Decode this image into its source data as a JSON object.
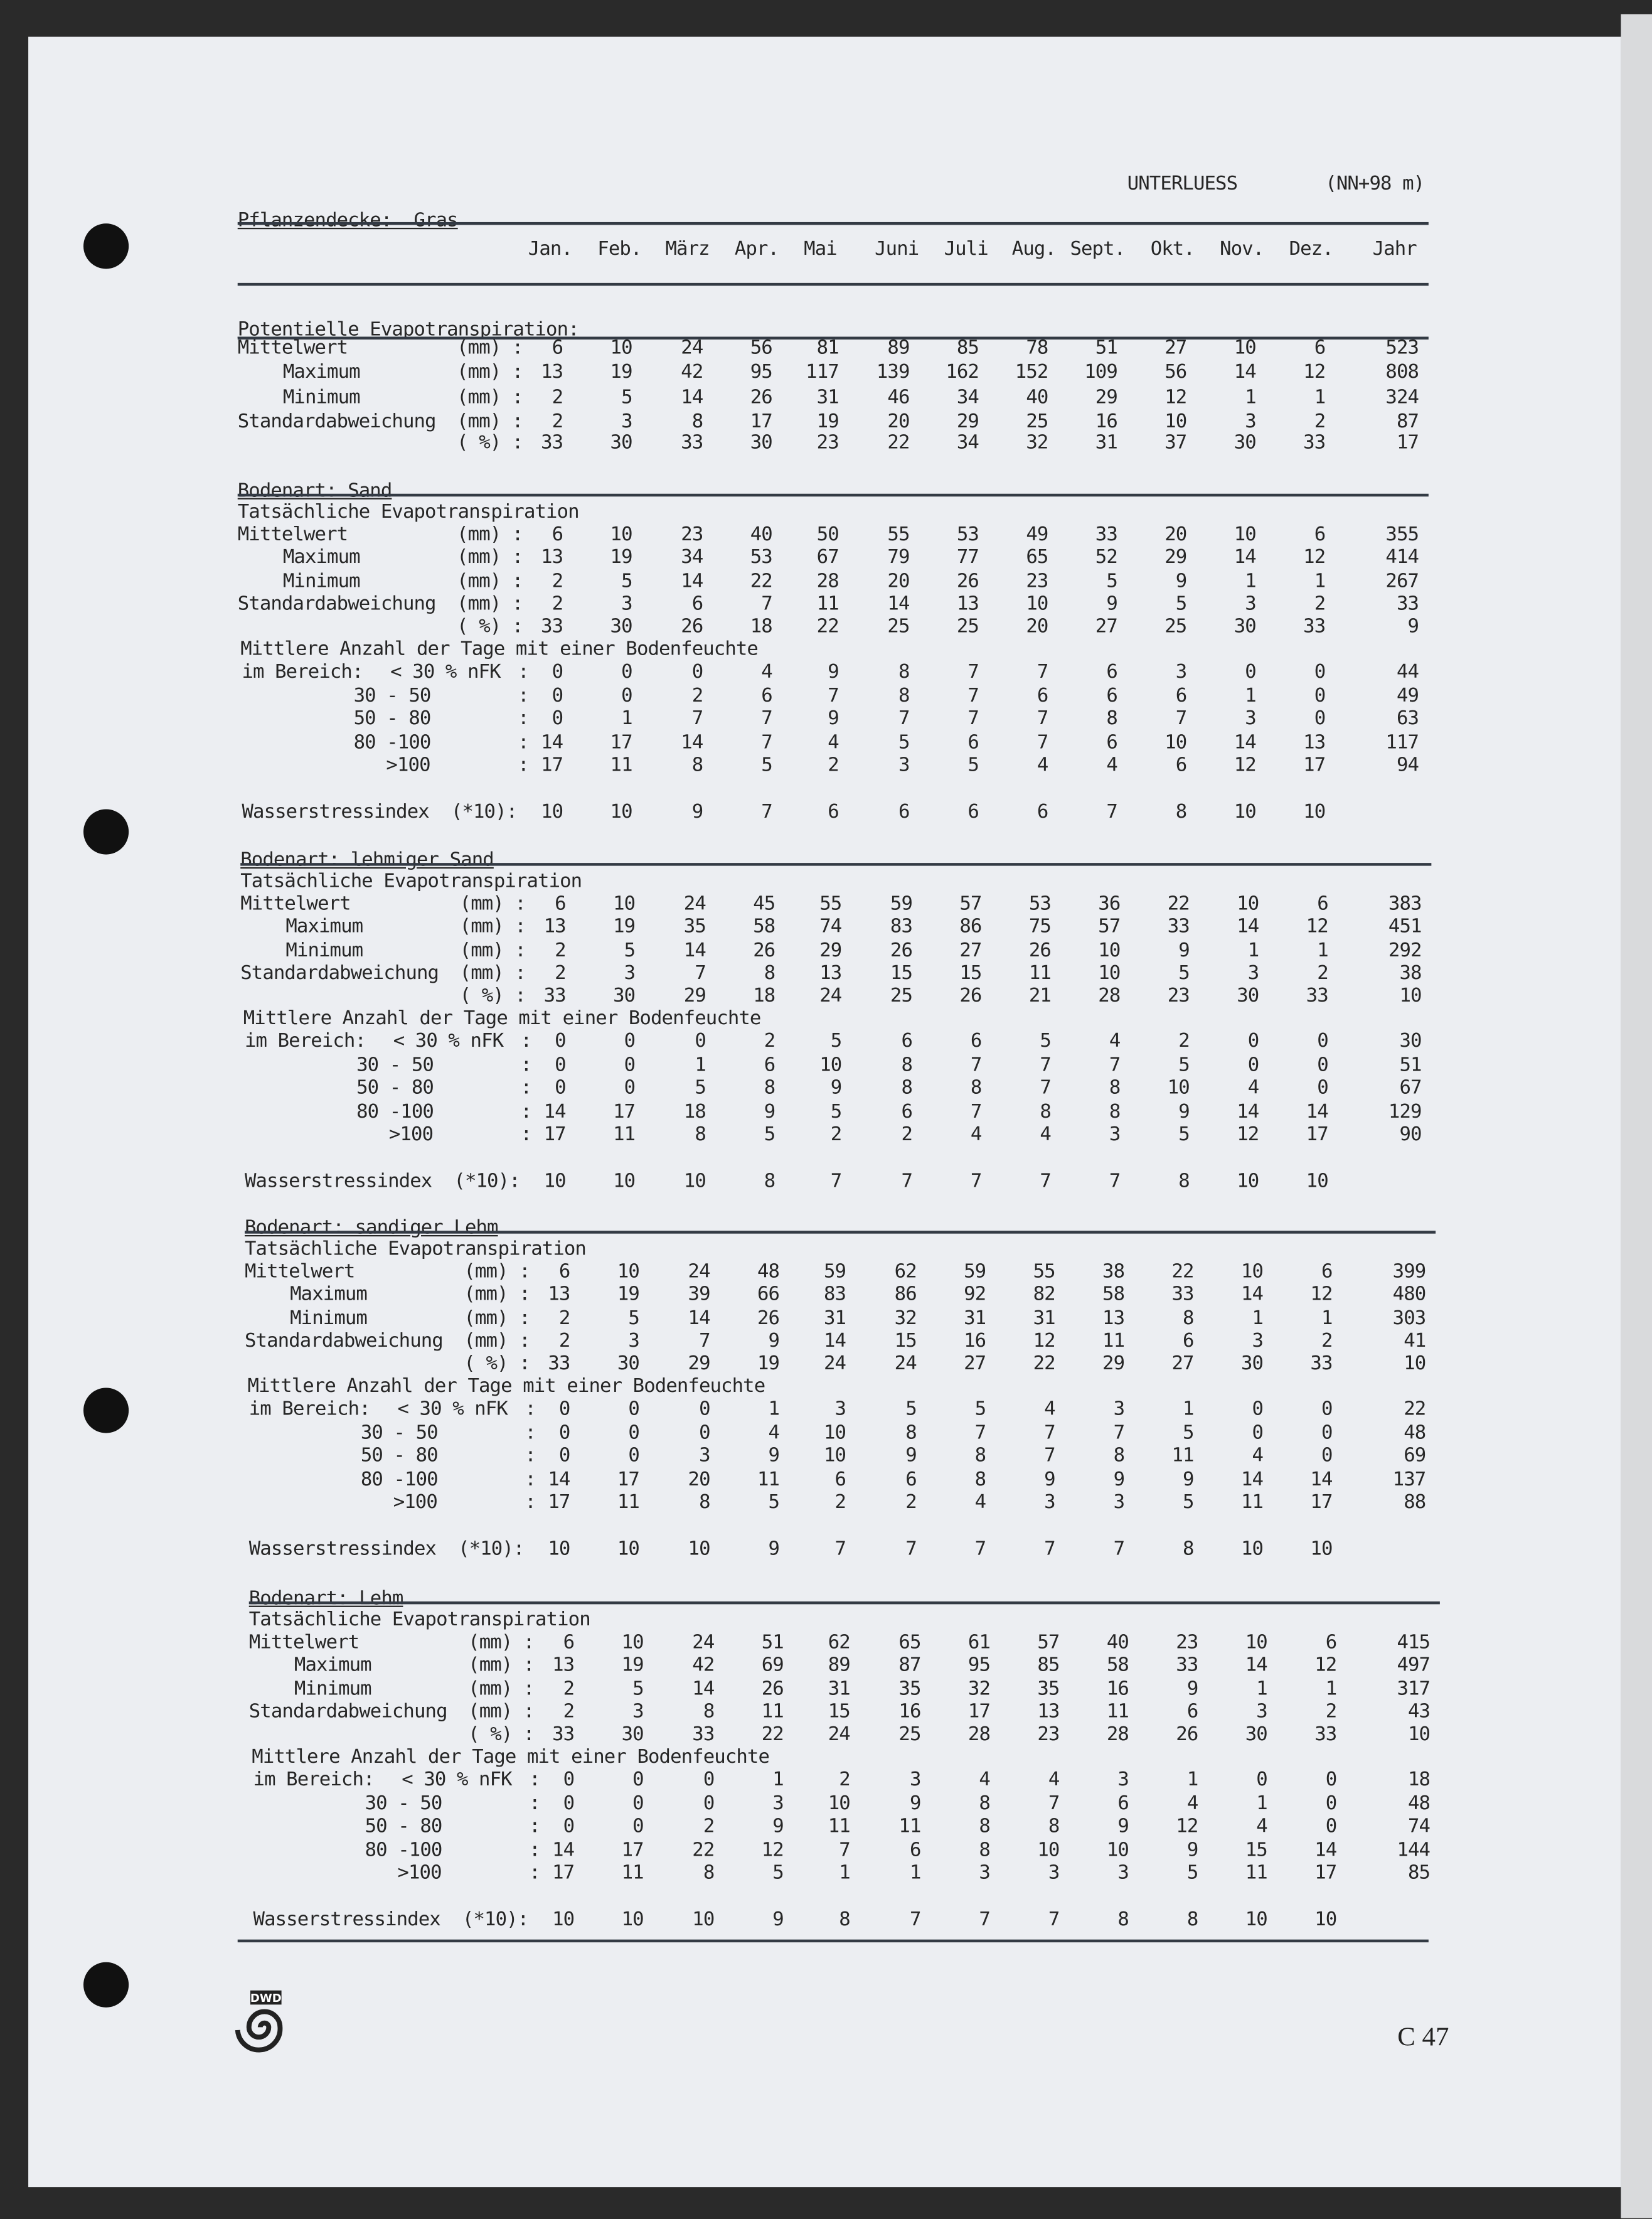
{
  "header": {
    "station": "UNTERLUESS",
    "elevation": "(NN+98 m)",
    "cover": "Pflanzendecke:  Gras"
  },
  "months": [
    "Jan.",
    "Feb.",
    "März",
    "Apr.",
    "Mai",
    "Juni",
    "Juli",
    "Aug.",
    "Sept.",
    "Okt.",
    "Nov.",
    "Dez.",
    "Jahr"
  ],
  "potential": {
    "title": "Potentielle Evapotranspiration:",
    "rows": [
      {
        "label": "Mittelwert",
        "unit": "(mm) :",
        "values": [
          "6",
          "10",
          "24",
          "56",
          "81",
          "89",
          "85",
          "78",
          "51",
          "27",
          "10",
          "6",
          "523"
        ]
      },
      {
        "label": "Maximum",
        "unit": "(mm) :",
        "values": [
          "13",
          "19",
          "42",
          "95",
          "117",
          "139",
          "162",
          "152",
          "109",
          "56",
          "14",
          "12",
          "808"
        ]
      },
      {
        "label": "Minimum",
        "unit": "(mm) :",
        "values": [
          "2",
          "5",
          "14",
          "26",
          "31",
          "46",
          "34",
          "40",
          "29",
          "12",
          "1",
          "1",
          "324"
        ]
      },
      {
        "label": "Standardabweichung",
        "unit": "(mm) :",
        "values": [
          "2",
          "3",
          "8",
          "17",
          "19",
          "20",
          "29",
          "25",
          "16",
          "10",
          "3",
          "2",
          "87"
        ]
      },
      {
        "label": "",
        "unit": "( %) :",
        "values": [
          "33",
          "30",
          "33",
          "30",
          "23",
          "22",
          "34",
          "32",
          "31",
          "37",
          "30",
          "33",
          "17"
        ]
      }
    ]
  },
  "soils": [
    {
      "title": "Bodenart: Sand",
      "subtitle": "Tatsächliche Evapotranspiration",
      "days_title": "Mittlere Anzahl der Tage mit einer Bodenfeuchte",
      "rows": [
        {
          "label": "Mittelwert",
          "unit": "(mm) :",
          "values": [
            "6",
            "10",
            "23",
            "40",
            "50",
            "55",
            "53",
            "49",
            "33",
            "20",
            "10",
            "6",
            "355"
          ]
        },
        {
          "label": "Maximum",
          "unit": "(mm) :",
          "values": [
            "13",
            "19",
            "34",
            "53",
            "67",
            "79",
            "77",
            "65",
            "52",
            "29",
            "14",
            "12",
            "414"
          ]
        },
        {
          "label": "Minimum",
          "unit": "(mm) :",
          "values": [
            "2",
            "5",
            "14",
            "22",
            "28",
            "20",
            "26",
            "23",
            "5",
            "9",
            "1",
            "1",
            "267"
          ]
        },
        {
          "label": "Standardabweichung",
          "unit": "(mm) :",
          "values": [
            "2",
            "3",
            "6",
            "7",
            "11",
            "14",
            "13",
            "10",
            "9",
            "5",
            "3",
            "2",
            "33"
          ]
        },
        {
          "label": "",
          "unit": "( %) :",
          "values": [
            "33",
            "30",
            "26",
            "18",
            "22",
            "25",
            "25",
            "20",
            "27",
            "25",
            "30",
            "33",
            "9"
          ]
        }
      ],
      "days": [
        {
          "label": "im Bereich:",
          "range": "< 30 % nFK",
          "values": [
            "0",
            "0",
            "0",
            "4",
            "9",
            "8",
            "7",
            "7",
            "6",
            "3",
            "0",
            "0",
            "44"
          ]
        },
        {
          "label": "",
          "range": "30 - 50",
          "values": [
            "0",
            "0",
            "2",
            "6",
            "7",
            "8",
            "7",
            "6",
            "6",
            "6",
            "1",
            "0",
            "49"
          ]
        },
        {
          "label": "",
          "range": "50 - 80",
          "values": [
            "0",
            "1",
            "7",
            "7",
            "9",
            "7",
            "7",
            "7",
            "8",
            "7",
            "3",
            "0",
            "63"
          ]
        },
        {
          "label": "",
          "range": "80 -100",
          "values": [
            "14",
            "17",
            "14",
            "7",
            "4",
            "5",
            "6",
            "7",
            "6",
            "10",
            "14",
            "13",
            "117"
          ]
        },
        {
          "label": "",
          "range": ">100",
          "values": [
            "17",
            "11",
            "8",
            "5",
            "2",
            "3",
            "5",
            "4",
            "4",
            "6",
            "12",
            "17",
            "94"
          ]
        }
      ],
      "stress": {
        "label": "Wasserstressindex  (*10):",
        "values": [
          "10",
          "10",
          "9",
          "7",
          "6",
          "6",
          "6",
          "6",
          "7",
          "8",
          "10",
          "10"
        ]
      }
    },
    {
      "title": "Bodenart: lehmiger Sand",
      "subtitle": "Tatsächliche Evapotranspiration",
      "days_title": "Mittlere Anzahl der Tage mit einer Bodenfeuchte",
      "rows": [
        {
          "label": "Mittelwert",
          "unit": "(mm) :",
          "values": [
            "6",
            "10",
            "24",
            "45",
            "55",
            "59",
            "57",
            "53",
            "36",
            "22",
            "10",
            "6",
            "383"
          ]
        },
        {
          "label": "Maximum",
          "unit": "(mm) :",
          "values": [
            "13",
            "19",
            "35",
            "58",
            "74",
            "83",
            "86",
            "75",
            "57",
            "33",
            "14",
            "12",
            "451"
          ]
        },
        {
          "label": "Minimum",
          "unit": "(mm) :",
          "values": [
            "2",
            "5",
            "14",
            "26",
            "29",
            "26",
            "27",
            "26",
            "10",
            "9",
            "1",
            "1",
            "292"
          ]
        },
        {
          "label": "Standardabweichung",
          "unit": "(mm) :",
          "values": [
            "2",
            "3",
            "7",
            "8",
            "13",
            "15",
            "15",
            "11",
            "10",
            "5",
            "3",
            "2",
            "38"
          ]
        },
        {
          "label": "",
          "unit": "( %) :",
          "values": [
            "33",
            "30",
            "29",
            "18",
            "24",
            "25",
            "26",
            "21",
            "28",
            "23",
            "30",
            "33",
            "10"
          ]
        }
      ],
      "days": [
        {
          "label": "im Bereich:",
          "range": "< 30 % nFK",
          "values": [
            "0",
            "0",
            "0",
            "2",
            "5",
            "6",
            "6",
            "5",
            "4",
            "2",
            "0",
            "0",
            "30"
          ]
        },
        {
          "label": "",
          "range": "30 - 50",
          "values": [
            "0",
            "0",
            "1",
            "6",
            "10",
            "8",
            "7",
            "7",
            "7",
            "5",
            "0",
            "0",
            "51"
          ]
        },
        {
          "label": "",
          "range": "50 - 80",
          "values": [
            "0",
            "0",
            "5",
            "8",
            "9",
            "8",
            "8",
            "7",
            "8",
            "10",
            "4",
            "0",
            "67"
          ]
        },
        {
          "label": "",
          "range": "80 -100",
          "values": [
            "14",
            "17",
            "18",
            "9",
            "5",
            "6",
            "7",
            "8",
            "8",
            "9",
            "14",
            "14",
            "129"
          ]
        },
        {
          "label": "",
          "range": ">100",
          "values": [
            "17",
            "11",
            "8",
            "5",
            "2",
            "2",
            "4",
            "4",
            "3",
            "5",
            "12",
            "17",
            "90"
          ]
        }
      ],
      "stress": {
        "label": "Wasserstressindex  (*10):",
        "values": [
          "10",
          "10",
          "10",
          "8",
          "7",
          "7",
          "7",
          "7",
          "7",
          "8",
          "10",
          "10"
        ]
      }
    },
    {
      "title": "Bodenart: sandiger Lehm",
      "subtitle": "Tatsächliche Evapotranspiration",
      "days_title": "Mittlere Anzahl der Tage mit einer Bodenfeuchte",
      "rows": [
        {
          "label": "Mittelwert",
          "unit": "(mm) :",
          "values": [
            "6",
            "10",
            "24",
            "48",
            "59",
            "62",
            "59",
            "55",
            "38",
            "22",
            "10",
            "6",
            "399"
          ]
        },
        {
          "label": "Maximum",
          "unit": "(mm) :",
          "values": [
            "13",
            "19",
            "39",
            "66",
            "83",
            "86",
            "92",
            "82",
            "58",
            "33",
            "14",
            "12",
            "480"
          ]
        },
        {
          "label": "Minimum",
          "unit": "(mm) :",
          "values": [
            "2",
            "5",
            "14",
            "26",
            "31",
            "32",
            "31",
            "31",
            "13",
            "8",
            "1",
            "1",
            "303"
          ]
        },
        {
          "label": "Standardabweichung",
          "unit": "(mm) :",
          "values": [
            "2",
            "3",
            "7",
            "9",
            "14",
            "15",
            "16",
            "12",
            "11",
            "6",
            "3",
            "2",
            "41"
          ]
        },
        {
          "label": "",
          "unit": "( %) :",
          "values": [
            "33",
            "30",
            "29",
            "19",
            "24",
            "24",
            "27",
            "22",
            "29",
            "27",
            "30",
            "33",
            "10"
          ]
        }
      ],
      "days": [
        {
          "label": "im Bereich:",
          "range": "< 30 % nFK",
          "values": [
            "0",
            "0",
            "0",
            "1",
            "3",
            "5",
            "5",
            "4",
            "3",
            "1",
            "0",
            "0",
            "22"
          ]
        },
        {
          "label": "",
          "range": "30 - 50",
          "values": [
            "0",
            "0",
            "0",
            "4",
            "10",
            "8",
            "7",
            "7",
            "7",
            "5",
            "0",
            "0",
            "48"
          ]
        },
        {
          "label": "",
          "range": "50 - 80",
          "values": [
            "0",
            "0",
            "3",
            "9",
            "10",
            "9",
            "8",
            "7",
            "8",
            "11",
            "4",
            "0",
            "69"
          ]
        },
        {
          "label": "",
          "range": "80 -100",
          "values": [
            "14",
            "17",
            "20",
            "11",
            "6",
            "6",
            "8",
            "9",
            "9",
            "9",
            "14",
            "14",
            "137"
          ]
        },
        {
          "label": "",
          "range": ">100",
          "values": [
            "17",
            "11",
            "8",
            "5",
            "2",
            "2",
            "4",
            "3",
            "3",
            "5",
            "11",
            "17",
            "88"
          ]
        }
      ],
      "stress": {
        "label": "Wasserstressindex  (*10):",
        "values": [
          "10",
          "10",
          "10",
          "9",
          "7",
          "7",
          "7",
          "7",
          "7",
          "8",
          "10",
          "10"
        ]
      }
    },
    {
      "title": "Bodenart: Lehm",
      "subtitle": "Tatsächliche Evapotranspiration",
      "days_title": "Mittlere Anzahl der Tage mit einer Bodenfeuchte",
      "rows": [
        {
          "label": "Mittelwert",
          "unit": "(mm) :",
          "values": [
            "6",
            "10",
            "24",
            "51",
            "62",
            "65",
            "61",
            "57",
            "40",
            "23",
            "10",
            "6",
            "415"
          ]
        },
        {
          "label": "Maximum",
          "unit": "(mm) :",
          "values": [
            "13",
            "19",
            "42",
            "69",
            "89",
            "87",
            "95",
            "85",
            "58",
            "33",
            "14",
            "12",
            "497"
          ]
        },
        {
          "label": "Minimum",
          "unit": "(mm) :",
          "values": [
            "2",
            "5",
            "14",
            "26",
            "31",
            "35",
            "32",
            "35",
            "16",
            "9",
            "1",
            "1",
            "317"
          ]
        },
        {
          "label": "Standardabweichung",
          "unit": "(mm) :",
          "values": [
            "2",
            "3",
            "8",
            "11",
            "15",
            "16",
            "17",
            "13",
            "11",
            "6",
            "3",
            "2",
            "43"
          ]
        },
        {
          "label": "",
          "unit": "( %) :",
          "values": [
            "33",
            "30",
            "33",
            "22",
            "24",
            "25",
            "28",
            "23",
            "28",
            "26",
            "30",
            "33",
            "10"
          ]
        }
      ],
      "days": [
        {
          "label": "im Bereich:",
          "range": "< 30 % nFK",
          "values": [
            "0",
            "0",
            "0",
            "1",
            "2",
            "3",
            "4",
            "4",
            "3",
            "1",
            "0",
            "0",
            "18"
          ]
        },
        {
          "label": "",
          "range": "30 - 50",
          "values": [
            "0",
            "0",
            "0",
            "3",
            "10",
            "9",
            "8",
            "7",
            "6",
            "4",
            "1",
            "0",
            "48"
          ]
        },
        {
          "label": "",
          "range": "50 - 80",
          "values": [
            "0",
            "0",
            "2",
            "9",
            "11",
            "11",
            "8",
            "8",
            "9",
            "12",
            "4",
            "0",
            "74"
          ]
        },
        {
          "label": "",
          "range": "80 -100",
          "values": [
            "14",
            "17",
            "22",
            "12",
            "7",
            "6",
            "8",
            "10",
            "10",
            "9",
            "15",
            "14",
            "144"
          ]
        },
        {
          "label": "",
          "range": ">100",
          "values": [
            "17",
            "11",
            "8",
            "5",
            "1",
            "1",
            "3",
            "3",
            "3",
            "5",
            "11",
            "17",
            "85"
          ]
        }
      ],
      "stress": {
        "label": "Wasserstressindex  (*10):",
        "values": [
          "10",
          "10",
          "10",
          "9",
          "8",
          "7",
          "7",
          "7",
          "8",
          "8",
          "10",
          "10"
        ]
      }
    }
  ],
  "footer": {
    "logo_text": "DWD",
    "page_number": "C 47"
  }
}
